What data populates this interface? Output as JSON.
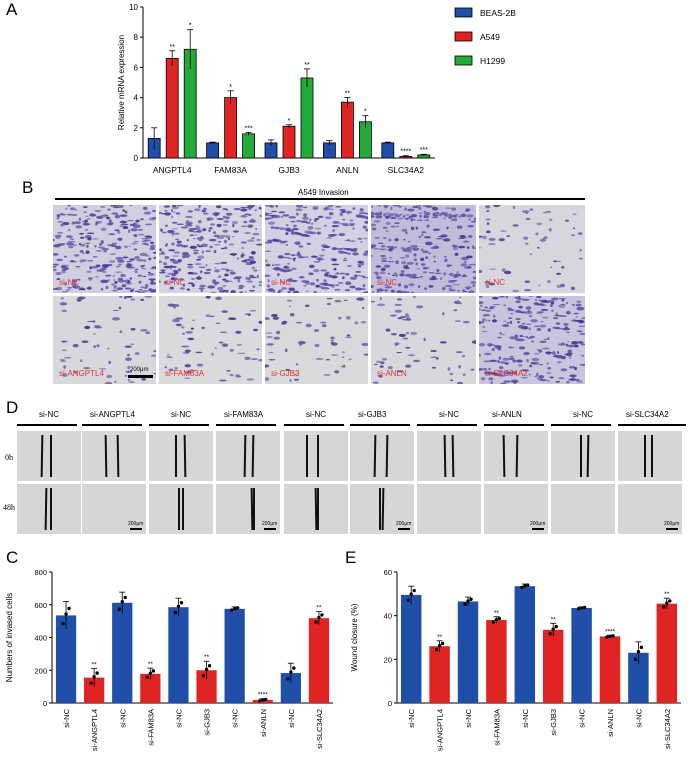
{
  "panels": {
    "A": "A",
    "B": "B",
    "C": "C",
    "D": "D",
    "E": "E"
  },
  "colors": {
    "BEAS-2B": "#1f4fa8",
    "A549": "#e02424",
    "H1299": "#22aa3a",
    "si-NC": "#1f4fa8",
    "si": "#e02424"
  },
  "chart_data": [
    {
      "type": "bar",
      "categories": [
        "ANGPTL4",
        "FAM83A",
        "GJB3",
        "ANLN",
        "SLC34A2"
      ],
      "series": [
        {
          "name": "BEAS-2B",
          "values": [
            1.3,
            1.0,
            1.0,
            1.0,
            1.0
          ],
          "errors": [
            0.7,
            0.05,
            0.2,
            0.15,
            0.05
          ],
          "sig": [
            "",
            "",
            "",
            "",
            ""
          ]
        },
        {
          "name": "A549",
          "values": [
            6.6,
            4.0,
            2.1,
            3.7,
            0.1
          ],
          "errors": [
            0.5,
            0.45,
            0.1,
            0.3,
            0.05
          ],
          "sig": [
            "**",
            "*",
            "*",
            "**",
            "****"
          ]
        },
        {
          "name": "H1299",
          "values": [
            7.2,
            1.6,
            5.3,
            2.4,
            0.2
          ],
          "errors": [
            1.3,
            0.1,
            0.6,
            0.4,
            0.05
          ],
          "sig": [
            "*",
            "***",
            "**",
            "*",
            "***"
          ]
        }
      ],
      "ylabel": "Relative mRNA expression",
      "ylim": [
        0,
        10
      ],
      "yticks": [
        0,
        2,
        4,
        6,
        8,
        10
      ],
      "legend_placement": "right"
    },
    {
      "type": "bar",
      "categories": [
        "si-NC",
        "si-ANGPTL4",
        "si-NC",
        "si-FAM83A",
        "si-NC",
        "si-GJB3",
        "si-NC",
        "si-ANLN",
        "si-NC",
        "si-SLC34A2"
      ],
      "values": [
        535,
        155,
        612,
        178,
        585,
        200,
        575,
        18,
        183,
        518
      ],
      "errors": [
        85,
        55,
        65,
        35,
        55,
        55,
        12,
        8,
        60,
        40
      ],
      "sig": [
        "",
        "**",
        "",
        "**",
        "",
        "**",
        "",
        "****",
        "",
        "**"
      ],
      "ylabel": "Numbers of invased cells",
      "ylim": [
        0,
        800
      ],
      "yticks": [
        0,
        200,
        400,
        600,
        800
      ]
    },
    {
      "type": "bar",
      "categories": [
        "si-NC",
        "si-ANGPTL4",
        "si-NC",
        "si-FAM83A",
        "si-NC",
        "si-GJB3",
        "si-NC",
        "si-ANLN",
        "si-NC",
        "si-SLC34A2"
      ],
      "values": [
        49.5,
        26.0,
        46.5,
        38.0,
        53.5,
        33.5,
        43.5,
        30.5,
        23.0,
        45.5
      ],
      "errors": [
        4.0,
        2.5,
        2.0,
        1.5,
        1.0,
        3.0,
        0.5,
        0.5,
        5.0,
        2.5
      ],
      "sig": [
        "",
        "**",
        "",
        "**",
        "",
        "**",
        "",
        "****",
        "",
        "**"
      ],
      "ylabel": "Wound closure (%)",
      "ylim": [
        0,
        60
      ],
      "yticks": [
        0,
        20,
        40,
        60
      ]
    }
  ],
  "invasion": {
    "title": "A549 Invasion",
    "top_labels": [
      "si-NC",
      "si-NC",
      "si-NC",
      "si-NC",
      "si-NC"
    ],
    "bottom_labels": [
      "si-ANGPTL4",
      "si-FAM83A",
      "si-GJB3",
      "si-ANLN",
      "si-SLC34A2"
    ],
    "scale": "200μm"
  },
  "wound": {
    "groups": [
      {
        "nc": "si-NC",
        "si": "si-ANGPTL4"
      },
      {
        "nc": "si-NC",
        "si": "si-FAM83A"
      },
      {
        "nc": "si-NC",
        "si": "si-GJB3"
      },
      {
        "nc": "si-NC",
        "si": "si-ANLN"
      },
      {
        "nc": "si-NC",
        "si": "si-SLC34A2"
      }
    ],
    "time_0": "0h",
    "time_48": "48h",
    "scale": "200μm"
  }
}
